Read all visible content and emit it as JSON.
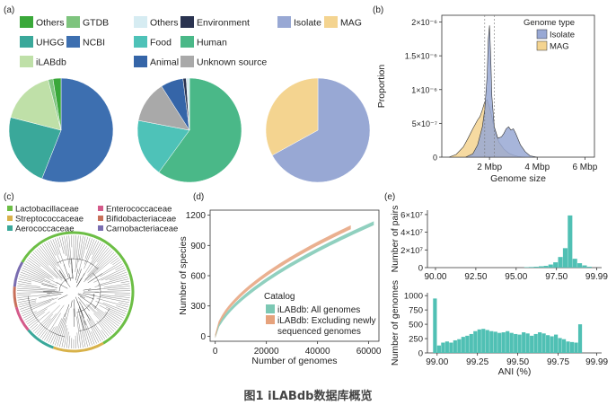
{
  "caption": "图1 iLABdb数据库概览",
  "panel_labels": [
    "(a)",
    "(b)",
    "(c)",
    "(d)",
    "(e)"
  ],
  "chart_data": [
    {
      "type": "pie",
      "panel": "(a)",
      "legend": [
        {
          "label": "Others",
          "color": "#3aa83a"
        },
        {
          "label": "GTDB",
          "color": "#7ec47e"
        },
        {
          "label": "UHGG",
          "color": "#3aa89a"
        },
        {
          "label": "NCBI",
          "color": "#3d6fb0"
        },
        {
          "label": "iLABdb",
          "color": "#bfe0a8"
        }
      ],
      "slices": [
        {
          "label": "NCBI",
          "value": 56,
          "color": "#3d6fb0"
        },
        {
          "label": "UHGG",
          "value": 23,
          "color": "#3aa89a"
        },
        {
          "label": "iLABdb",
          "value": 17,
          "color": "#bfe0a8"
        },
        {
          "label": "GTDB",
          "value": 1.5,
          "color": "#7ec47e"
        },
        {
          "label": "Others",
          "value": 2.5,
          "color": "#3aa83a"
        }
      ]
    },
    {
      "type": "pie",
      "panel": "(a)",
      "legend": [
        {
          "label": "Others",
          "color": "#d6ecf2"
        },
        {
          "label": "Environment",
          "color": "#2a3350"
        },
        {
          "label": "Food",
          "color": "#4ec2b8"
        },
        {
          "label": "Human",
          "color": "#4ab888"
        },
        {
          "label": "Animal",
          "color": "#3565a8"
        },
        {
          "label": "Unknown source",
          "color": "#a9a9a9"
        }
      ],
      "slices": [
        {
          "label": "Human",
          "value": 60,
          "color": "#4ab888"
        },
        {
          "label": "Food",
          "value": 18,
          "color": "#4ec2b8"
        },
        {
          "label": "Unknown source",
          "value": 13,
          "color": "#a9a9a9"
        },
        {
          "label": "Animal",
          "value": 7,
          "color": "#3565a8"
        },
        {
          "label": "Environment",
          "value": 1,
          "color": "#2a3350"
        },
        {
          "label": "Others",
          "value": 1,
          "color": "#d6ecf2"
        }
      ]
    },
    {
      "type": "pie",
      "panel": "(a)",
      "legend": [
        {
          "label": "Isolate",
          "color": "#98a8d4"
        },
        {
          "label": "MAG",
          "color": "#f4d490"
        }
      ],
      "slices": [
        {
          "label": "Isolate",
          "value": 67,
          "color": "#98a8d4"
        },
        {
          "label": "MAG",
          "value": 33,
          "color": "#f4d490"
        }
      ]
    },
    {
      "type": "area",
      "panel": "(b)",
      "xlabel": "Genome size",
      "ylabel": "Proportion",
      "xticks": [
        "2 Mbp",
        "4 Mbp",
        "6 Mbp"
      ],
      "xtick_values": [
        2,
        4,
        6
      ],
      "yticks": [
        "0",
        "5×10⁻⁷",
        "1×10⁻⁶",
        "1.5×10⁻⁶",
        "2×10⁻⁶"
      ],
      "ytick_values": [
        0,
        0.5,
        1.0,
        1.5,
        2.0
      ],
      "xlim": [
        0,
        6.4
      ],
      "ylim": [
        0,
        2.1
      ],
      "legend_title": "Genome type",
      "legend_position": "top-right",
      "vlines": [
        1.8,
        2.2
      ],
      "series": [
        {
          "name": "MAG",
          "color": "#f4d490",
          "x": [
            0.3,
            0.6,
            0.9,
            1.1,
            1.3,
            1.5,
            1.6,
            1.7,
            1.8,
            1.9,
            2.0,
            2.1,
            2.2,
            2.4,
            2.6,
            2.8,
            3.0,
            3.2,
            3.5
          ],
          "y": [
            0,
            0.04,
            0.15,
            0.28,
            0.42,
            0.55,
            0.6,
            0.7,
            0.82,
            0.85,
            0.74,
            0.6,
            0.4,
            0.22,
            0.12,
            0.06,
            0.03,
            0.01,
            0
          ]
        },
        {
          "name": "Isolate",
          "color": "#98a8d4",
          "x": [
            1.0,
            1.3,
            1.5,
            1.7,
            1.8,
            1.9,
            1.95,
            2.0,
            2.05,
            2.1,
            2.2,
            2.35,
            2.5,
            2.6,
            2.7,
            2.8,
            2.9,
            3.0,
            3.1,
            3.3,
            3.5,
            3.7,
            4.0
          ],
          "y": [
            0,
            0.05,
            0.18,
            0.45,
            0.7,
            1.2,
            1.75,
            1.95,
            1.5,
            0.9,
            0.45,
            0.28,
            0.3,
            0.35,
            0.42,
            0.45,
            0.4,
            0.42,
            0.35,
            0.18,
            0.08,
            0.02,
            0
          ]
        }
      ]
    },
    {
      "type": "line",
      "panel": "(d)",
      "xlabel": "Number of genomes",
      "ylabel": "Number of species",
      "xticks": [
        "0",
        "20000",
        "40000",
        "60000"
      ],
      "xtick_values": [
        0,
        20000,
        40000,
        60000
      ],
      "yticks": [
        "0",
        "300",
        "600",
        "900",
        "1200"
      ],
      "ytick_values": [
        0,
        300,
        600,
        900,
        1200
      ],
      "xlim": [
        -2000,
        64000
      ],
      "ylim": [
        -50,
        1250
      ],
      "legend_title": "Catalog",
      "legend_position": "bottom-right",
      "series": [
        {
          "name": "iLABdb: All genomes",
          "color": "#7cc8b4",
          "n_max": 62000,
          "y_max": 1120,
          "k": 0.62
        },
        {
          "name": "iLABdb: Excluding newly sequenced genomes",
          "color": "#e6a27c",
          "n_max": 53000,
          "y_max": 1080,
          "k": 0.58
        }
      ]
    },
    {
      "type": "bar",
      "panel": "(e)",
      "ylabel": "Number of pairs",
      "xticks": [
        "90.00",
        "92.50",
        "95.00",
        "97.50",
        "99.99"
      ],
      "xtick_values": [
        90.0,
        92.5,
        95.0,
        97.5,
        99.99
      ],
      "yticks": [
        "0",
        "2×10⁷",
        "4×10⁷",
        "6×10⁷"
      ],
      "ytick_values": [
        0,
        2,
        4,
        6
      ],
      "xlim": [
        89.5,
        100.3
      ],
      "ylim": [
        0,
        6.5
      ],
      "color": "#50c0b4",
      "bin_width": 0.3,
      "bins_x": [
        95.5,
        95.8,
        96.1,
        96.4,
        96.7,
        97.0,
        97.3,
        97.6,
        97.9,
        98.2,
        98.5,
        98.8,
        99.1,
        99.4
      ],
      "values": [
        0.05,
        0.07,
        0.1,
        0.15,
        0.2,
        0.35,
        0.6,
        1.2,
        2.2,
        5.9,
        1.0,
        0.5,
        0.25,
        0.1
      ]
    },
    {
      "type": "bar",
      "panel": "(e)",
      "xlabel": "ANI (%)",
      "ylabel": "Number of genomes",
      "xticks": [
        "99.00",
        "99.25",
        "99.50",
        "99.75",
        "99.99"
      ],
      "xtick_values": [
        99.0,
        99.25,
        99.5,
        99.75,
        99.99
      ],
      "yticks": [
        "0",
        "250",
        "500",
        "750",
        "1000"
      ],
      "ytick_values": [
        0,
        250,
        500,
        750,
        1000
      ],
      "xlim": [
        98.94,
        100.02
      ],
      "ylim": [
        0,
        1050
      ],
      "color": "#50c0b4",
      "bin_width": 0.025,
      "bins_start": 98.975,
      "values": [
        950,
        130,
        180,
        200,
        180,
        220,
        240,
        280,
        300,
        330,
        380,
        410,
        420,
        400,
        380,
        370,
        350,
        360,
        380,
        350,
        330,
        320,
        360,
        340,
        300,
        330,
        360,
        340,
        310,
        290,
        320,
        260,
        240,
        200,
        190,
        180,
        500
      ]
    },
    {
      "type": "tree",
      "panel": "(c)",
      "legend": [
        {
          "label": "Lactobacillaceae",
          "color": "#6cbe45"
        },
        {
          "label": "Streptococcaceae",
          "color": "#d8b24a"
        },
        {
          "label": "Aerococcaceae",
          "color": "#3aa89a"
        },
        {
          "label": "Enterococcaceae",
          "color": "#d45a8a"
        },
        {
          "label": "Bifidobacteriaceae",
          "color": "#c8705a"
        },
        {
          "label": "Carnobacteriaceae",
          "color": "#7a6db0"
        }
      ]
    }
  ]
}
